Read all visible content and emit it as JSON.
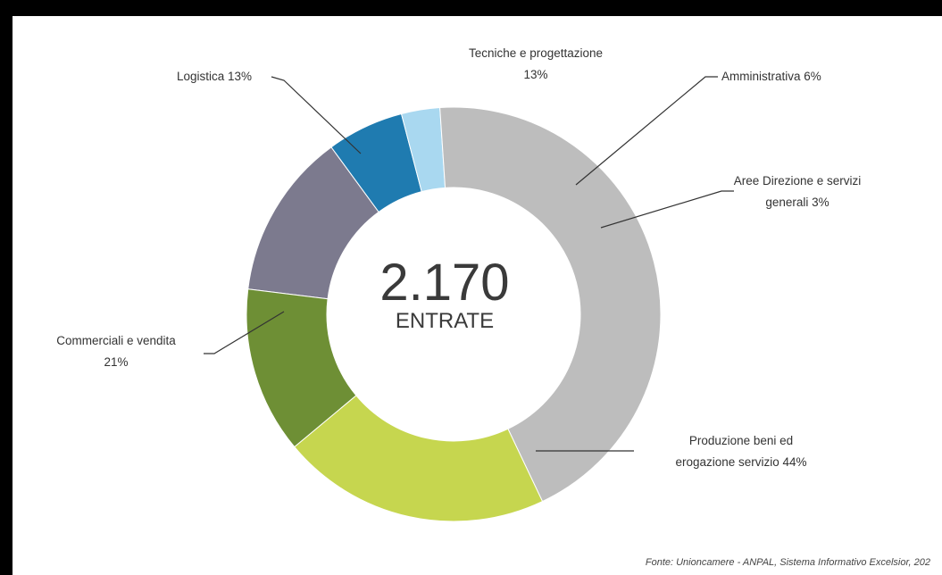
{
  "chart_data": {
    "type": "pie",
    "variant": "donut",
    "center_value": "2.170",
    "center_label": "ENTRATE",
    "source": "Fonte: Unioncamere - ANPAL, Sistema Informativo Excelsior, 202",
    "slices": [
      {
        "label_lines": [
          "Tecniche e progettazione",
          "13%"
        ],
        "value": 13,
        "color": "#7c7a8e"
      },
      {
        "label_lines": [
          "Amministrativa 6%"
        ],
        "value": 6,
        "color": "#1f7bb0"
      },
      {
        "label_lines": [
          "Aree Direzione e servizi",
          "generali 3%"
        ],
        "value": 3,
        "color": "#a9d8f0"
      },
      {
        "label_lines": [
          "Produzione beni ed",
          "erogazione servizio 44%"
        ],
        "value": 44,
        "color": "#bdbdbd"
      },
      {
        "label_lines": [
          "Commerciali e vendita",
          "21%"
        ],
        "value": 21,
        "color": "#c6d64f"
      },
      {
        "label_lines": [
          "Logistica 13%"
        ],
        "value": 13,
        "color": "#6e8f35"
      }
    ]
  }
}
